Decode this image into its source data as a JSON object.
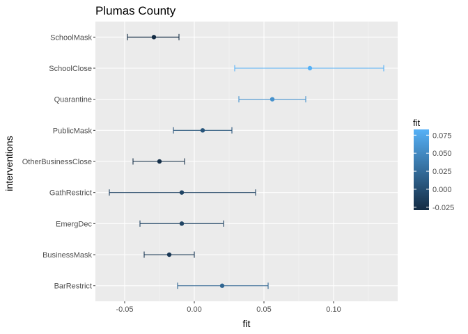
{
  "chart_data": {
    "type": "scatter",
    "title": "Plumas County",
    "xlabel": "fit",
    "ylabel": "interventions",
    "xlim": [
      -0.071,
      0.146
    ],
    "xticks": [
      -0.05,
      0.0,
      0.05,
      0.1
    ],
    "xtick_labels": [
      "-0.05",
      "0.00",
      "0.05",
      "0.10"
    ],
    "grid": true,
    "legend_position": "right",
    "categories": [
      "SchoolMask",
      "SchoolClose",
      "Quarantine",
      "PublicMask",
      "OtherBusinessClose",
      "GathRestrict",
      "EmergDec",
      "BusinessMask",
      "BarRestrict"
    ],
    "series": [
      {
        "fit": [
          -0.029,
          0.083,
          0.056,
          0.006,
          -0.025,
          -0.009,
          -0.009,
          -0.018,
          0.02
        ],
        "lower": [
          -0.048,
          0.029,
          0.032,
          -0.015,
          -0.044,
          -0.061,
          -0.039,
          -0.036,
          -0.012
        ],
        "upper": [
          -0.011,
          0.136,
          0.08,
          0.027,
          -0.007,
          0.044,
          0.021,
          0.0,
          0.053
        ]
      }
    ],
    "colorbar": {
      "title": "fit",
      "range": [
        -0.029,
        0.083
      ],
      "ticks": [
        -0.025,
        0.0,
        0.025,
        0.05,
        0.075
      ],
      "tick_labels": [
        "-0.025",
        "0.000",
        "0.025",
        "0.050",
        "0.075"
      ],
      "color_low": "#132b43",
      "color_high": "#56b1f7"
    }
  },
  "colors": {
    "panel_background": "#ebebeb",
    "grid_major": "#ffffff",
    "grid_minor": "#f5f5f5"
  }
}
